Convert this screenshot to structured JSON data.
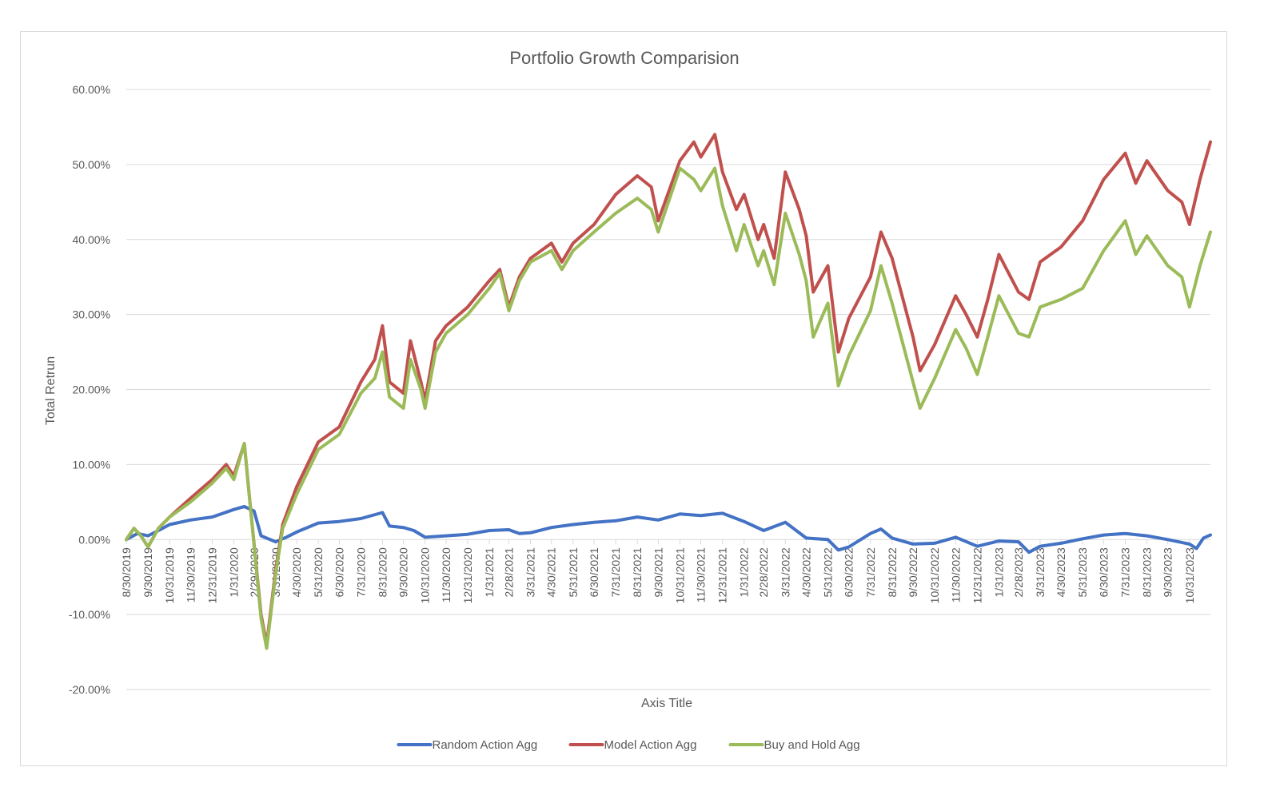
{
  "chart_data": {
    "type": "line",
    "title": "Portfolio Growth Comparision",
    "xlabel": "Axis Title",
    "ylabel": "Total Retrun",
    "ylim": [
      -20,
      60
    ],
    "y_ticks": [
      -20,
      -10,
      0,
      10,
      20,
      30,
      40,
      50,
      60
    ],
    "y_tick_labels": [
      "-20.00%",
      "-10.00%",
      "0.00%",
      "10.00%",
      "20.00%",
      "30.00%",
      "40.00%",
      "50.00%",
      "60.00%"
    ],
    "x_range": [
      "2019-08-30",
      "2023-11-30"
    ],
    "x_tick_dates": [
      "2019-08-30",
      "2019-09-30",
      "2019-10-31",
      "2019-11-30",
      "2019-12-31",
      "2020-01-31",
      "2020-02-29",
      "2020-03-31",
      "2020-04-30",
      "2020-05-31",
      "2020-06-30",
      "2020-07-31",
      "2020-08-31",
      "2020-09-30",
      "2020-10-31",
      "2020-11-30",
      "2020-12-31",
      "2021-01-31",
      "2021-02-28",
      "2021-03-31",
      "2021-04-30",
      "2021-05-31",
      "2021-06-30",
      "2021-07-31",
      "2021-08-31",
      "2021-09-30",
      "2021-10-31",
      "2021-11-30",
      "2021-12-31",
      "2022-01-31",
      "2022-02-28",
      "2022-03-31",
      "2022-04-30",
      "2022-05-31",
      "2022-06-30",
      "2022-07-31",
      "2022-08-31",
      "2022-09-30",
      "2022-10-31",
      "2022-11-30",
      "2022-12-31",
      "2023-01-31",
      "2023-02-28",
      "2023-03-31",
      "2023-04-30",
      "2023-05-31",
      "2023-06-30",
      "2023-07-31",
      "2023-08-31",
      "2023-09-30",
      "2023-10-31"
    ],
    "x_tick_labels": [
      "8/30/2019",
      "9/30/2019",
      "10/31/2019",
      "11/30/2019",
      "12/31/2019",
      "1/31/2020",
      "2/29/2020",
      "3/31/2020",
      "4/30/2020",
      "5/31/2020",
      "6/30/2020",
      "7/31/2020",
      "8/31/2020",
      "9/30/2020",
      "10/31/2020",
      "11/30/2020",
      "12/31/2020",
      "1/31/2021",
      "2/28/2021",
      "3/31/2021",
      "4/30/2021",
      "5/31/2021",
      "6/30/2021",
      "7/31/2021",
      "8/31/2021",
      "9/30/2021",
      "10/31/2021",
      "11/30/2021",
      "12/31/2021",
      "1/31/2022",
      "2/28/2022",
      "3/31/2022",
      "4/30/2022",
      "5/31/2022",
      "6/30/2022",
      "7/31/2022",
      "8/31/2022",
      "9/30/2022",
      "10/31/2022",
      "11/30/2022",
      "12/31/2022",
      "1/31/2023",
      "2/28/2023",
      "3/31/2023",
      "4/30/2023",
      "5/31/2023",
      "6/30/2023",
      "7/31/2023",
      "8/31/2023",
      "9/30/2023",
      "10/31/2023"
    ],
    "grid": true,
    "legend_position": "bottom",
    "series": [
      {
        "name": "Random Action Agg",
        "color": "#4472c4",
        "points": [
          [
            "2019-08-30",
            0
          ],
          [
            "2019-09-15",
            0.8
          ],
          [
            "2019-09-30",
            0.5
          ],
          [
            "2019-10-15",
            1.2
          ],
          [
            "2019-10-31",
            2.0
          ],
          [
            "2019-11-30",
            2.6
          ],
          [
            "2019-12-31",
            3.0
          ],
          [
            "2020-01-31",
            4.0
          ],
          [
            "2020-02-15",
            4.4
          ],
          [
            "2020-02-29",
            3.8
          ],
          [
            "2020-03-10",
            0.5
          ],
          [
            "2020-03-31",
            -0.3
          ],
          [
            "2020-04-15",
            0.3
          ],
          [
            "2020-04-30",
            1.0
          ],
          [
            "2020-05-31",
            2.2
          ],
          [
            "2020-06-30",
            2.4
          ],
          [
            "2020-07-31",
            2.8
          ],
          [
            "2020-08-31",
            3.6
          ],
          [
            "2020-09-10",
            1.8
          ],
          [
            "2020-09-30",
            1.6
          ],
          [
            "2020-10-15",
            1.2
          ],
          [
            "2020-10-31",
            0.3
          ],
          [
            "2020-11-30",
            0.5
          ],
          [
            "2020-12-31",
            0.7
          ],
          [
            "2021-01-31",
            1.2
          ],
          [
            "2021-02-28",
            1.3
          ],
          [
            "2021-03-15",
            0.8
          ],
          [
            "2021-03-31",
            0.9
          ],
          [
            "2021-04-30",
            1.6
          ],
          [
            "2021-05-31",
            2.0
          ],
          [
            "2021-06-30",
            2.3
          ],
          [
            "2021-07-31",
            2.5
          ],
          [
            "2021-08-31",
            3.0
          ],
          [
            "2021-09-30",
            2.6
          ],
          [
            "2021-10-31",
            3.4
          ],
          [
            "2021-11-30",
            3.2
          ],
          [
            "2021-12-31",
            3.5
          ],
          [
            "2022-01-31",
            2.4
          ],
          [
            "2022-02-28",
            1.2
          ],
          [
            "2022-03-31",
            2.3
          ],
          [
            "2022-04-30",
            0.2
          ],
          [
            "2022-05-31",
            0.0
          ],
          [
            "2022-06-15",
            -1.4
          ],
          [
            "2022-06-30",
            -1.0
          ],
          [
            "2022-07-31",
            0.8
          ],
          [
            "2022-08-15",
            1.4
          ],
          [
            "2022-08-31",
            0.2
          ],
          [
            "2022-09-30",
            -0.6
          ],
          [
            "2022-10-31",
            -0.5
          ],
          [
            "2022-11-30",
            0.3
          ],
          [
            "2022-12-31",
            -0.9
          ],
          [
            "2023-01-31",
            -0.2
          ],
          [
            "2023-02-28",
            -0.3
          ],
          [
            "2023-03-15",
            -1.7
          ],
          [
            "2023-03-31",
            -0.9
          ],
          [
            "2023-04-30",
            -0.5
          ],
          [
            "2023-05-31",
            0.1
          ],
          [
            "2023-06-30",
            0.6
          ],
          [
            "2023-07-31",
            0.8
          ],
          [
            "2023-08-31",
            0.5
          ],
          [
            "2023-09-30",
            0.0
          ],
          [
            "2023-10-31",
            -0.6
          ],
          [
            "2023-11-10",
            -1.2
          ],
          [
            "2023-11-20",
            0.2
          ],
          [
            "2023-11-30",
            0.6
          ]
        ]
      },
      {
        "name": "Model Action Agg",
        "color": "#c0504d",
        "points": [
          [
            "2019-08-30",
            0
          ],
          [
            "2019-09-10",
            1.5
          ],
          [
            "2019-09-20",
            0.5
          ],
          [
            "2019-09-30",
            -1.0
          ],
          [
            "2019-10-15",
            1.5
          ],
          [
            "2019-10-31",
            3.0
          ],
          [
            "2019-11-30",
            5.5
          ],
          [
            "2019-12-31",
            8.0
          ],
          [
            "2020-01-20",
            10.0
          ],
          [
            "2020-01-31",
            8.5
          ],
          [
            "2020-02-15",
            12.8
          ],
          [
            "2020-02-22",
            6.0
          ],
          [
            "2020-03-10",
            -10.0
          ],
          [
            "2020-03-18",
            -14.0
          ],
          [
            "2020-03-31",
            -4.0
          ],
          [
            "2020-04-10",
            2.0
          ],
          [
            "2020-04-30",
            7.0
          ],
          [
            "2020-05-31",
            13.0
          ],
          [
            "2020-06-30",
            15.0
          ],
          [
            "2020-07-31",
            21.0
          ],
          [
            "2020-08-20",
            24.0
          ],
          [
            "2020-08-31",
            28.5
          ],
          [
            "2020-09-10",
            21.0
          ],
          [
            "2020-09-30",
            19.5
          ],
          [
            "2020-10-10",
            26.5
          ],
          [
            "2020-10-25",
            21.0
          ],
          [
            "2020-10-31",
            18.5
          ],
          [
            "2020-11-15",
            26.5
          ],
          [
            "2020-11-30",
            28.5
          ],
          [
            "2020-12-31",
            31.0
          ],
          [
            "2021-01-31",
            34.5
          ],
          [
            "2021-02-15",
            36.0
          ],
          [
            "2021-02-28",
            31.0
          ],
          [
            "2021-03-15",
            35.0
          ],
          [
            "2021-03-31",
            37.5
          ],
          [
            "2021-04-30",
            39.5
          ],
          [
            "2021-05-15",
            37.0
          ],
          [
            "2021-05-31",
            39.5
          ],
          [
            "2021-06-30",
            42.0
          ],
          [
            "2021-07-31",
            46.0
          ],
          [
            "2021-08-31",
            48.5
          ],
          [
            "2021-09-20",
            47.0
          ],
          [
            "2021-09-30",
            42.5
          ],
          [
            "2021-10-31",
            50.5
          ],
          [
            "2021-11-20",
            53.0
          ],
          [
            "2021-11-30",
            51.0
          ],
          [
            "2021-12-20",
            54.0
          ],
          [
            "2021-12-31",
            49.0
          ],
          [
            "2022-01-20",
            44.0
          ],
          [
            "2022-01-31",
            46.0
          ],
          [
            "2022-02-20",
            40.0
          ],
          [
            "2022-02-28",
            42.0
          ],
          [
            "2022-03-15",
            37.5
          ],
          [
            "2022-03-31",
            49.0
          ],
          [
            "2022-04-20",
            44.0
          ],
          [
            "2022-04-30",
            40.5
          ],
          [
            "2022-05-10",
            33.0
          ],
          [
            "2022-05-31",
            36.5
          ],
          [
            "2022-06-15",
            25.0
          ],
          [
            "2022-06-30",
            29.5
          ],
          [
            "2022-07-31",
            35.0
          ],
          [
            "2022-08-15",
            41.0
          ],
          [
            "2022-08-31",
            37.5
          ],
          [
            "2022-09-30",
            27.0
          ],
          [
            "2022-10-10",
            22.5
          ],
          [
            "2022-10-31",
            26.0
          ],
          [
            "2022-11-30",
            32.5
          ],
          [
            "2022-12-15",
            30.0
          ],
          [
            "2022-12-31",
            27.0
          ],
          [
            "2023-01-15",
            32.0
          ],
          [
            "2023-01-31",
            38.0
          ],
          [
            "2023-02-28",
            33.0
          ],
          [
            "2023-03-15",
            32.0
          ],
          [
            "2023-03-31",
            37.0
          ],
          [
            "2023-04-30",
            39.0
          ],
          [
            "2023-05-31",
            42.5
          ],
          [
            "2023-06-30",
            48.0
          ],
          [
            "2023-07-31",
            51.5
          ],
          [
            "2023-08-15",
            47.5
          ],
          [
            "2023-08-31",
            50.5
          ],
          [
            "2023-09-30",
            46.5
          ],
          [
            "2023-10-20",
            45.0
          ],
          [
            "2023-10-31",
            42.0
          ],
          [
            "2023-11-15",
            48.0
          ],
          [
            "2023-11-30",
            53.0
          ]
        ]
      },
      {
        "name": "Buy and Hold Agg",
        "color": "#9bbb59",
        "points": [
          [
            "2019-08-30",
            0
          ],
          [
            "2019-09-10",
            1.5
          ],
          [
            "2019-09-20",
            0.5
          ],
          [
            "2019-09-30",
            -1.0
          ],
          [
            "2019-10-15",
            1.5
          ],
          [
            "2019-10-31",
            3.0
          ],
          [
            "2019-11-30",
            5.0
          ],
          [
            "2019-12-31",
            7.5
          ],
          [
            "2020-01-20",
            9.5
          ],
          [
            "2020-01-31",
            8.0
          ],
          [
            "2020-02-15",
            12.8
          ],
          [
            "2020-02-22",
            6.0
          ],
          [
            "2020-03-10",
            -10.5
          ],
          [
            "2020-03-18",
            -14.5
          ],
          [
            "2020-03-31",
            -4.5
          ],
          [
            "2020-04-10",
            1.5
          ],
          [
            "2020-04-30",
            6.0
          ],
          [
            "2020-05-31",
            12.0
          ],
          [
            "2020-06-30",
            14.0
          ],
          [
            "2020-07-31",
            19.5
          ],
          [
            "2020-08-20",
            21.5
          ],
          [
            "2020-08-31",
            25.0
          ],
          [
            "2020-09-10",
            19.0
          ],
          [
            "2020-09-30",
            17.5
          ],
          [
            "2020-10-10",
            24.0
          ],
          [
            "2020-10-25",
            20.0
          ],
          [
            "2020-10-31",
            17.5
          ],
          [
            "2020-11-15",
            25.0
          ],
          [
            "2020-11-30",
            27.5
          ],
          [
            "2020-12-31",
            30.0
          ],
          [
            "2021-01-31",
            33.5
          ],
          [
            "2021-02-15",
            35.5
          ],
          [
            "2021-02-28",
            30.5
          ],
          [
            "2021-03-15",
            34.5
          ],
          [
            "2021-03-31",
            37.0
          ],
          [
            "2021-04-30",
            38.5
          ],
          [
            "2021-05-15",
            36.0
          ],
          [
            "2021-05-31",
            38.5
          ],
          [
            "2021-06-30",
            41.0
          ],
          [
            "2021-07-31",
            43.5
          ],
          [
            "2021-08-31",
            45.5
          ],
          [
            "2021-09-20",
            44.0
          ],
          [
            "2021-09-30",
            41.0
          ],
          [
            "2021-10-31",
            49.5
          ],
          [
            "2021-11-20",
            48.0
          ],
          [
            "2021-11-30",
            46.5
          ],
          [
            "2021-12-20",
            49.5
          ],
          [
            "2021-12-31",
            44.5
          ],
          [
            "2022-01-20",
            38.5
          ],
          [
            "2022-01-31",
            42.0
          ],
          [
            "2022-02-20",
            36.5
          ],
          [
            "2022-02-28",
            38.5
          ],
          [
            "2022-03-15",
            34.0
          ],
          [
            "2022-03-31",
            43.5
          ],
          [
            "2022-04-20",
            38.0
          ],
          [
            "2022-04-30",
            34.5
          ],
          [
            "2022-05-10",
            27.0
          ],
          [
            "2022-05-31",
            31.5
          ],
          [
            "2022-06-15",
            20.5
          ],
          [
            "2022-06-30",
            24.5
          ],
          [
            "2022-07-31",
            30.5
          ],
          [
            "2022-08-15",
            36.5
          ],
          [
            "2022-08-31",
            31.5
          ],
          [
            "2022-09-30",
            21.0
          ],
          [
            "2022-10-10",
            17.5
          ],
          [
            "2022-10-31",
            21.5
          ],
          [
            "2022-11-30",
            28.0
          ],
          [
            "2022-12-15",
            25.5
          ],
          [
            "2022-12-31",
            22.0
          ],
          [
            "2023-01-15",
            27.0
          ],
          [
            "2023-01-31",
            32.5
          ],
          [
            "2023-02-28",
            27.5
          ],
          [
            "2023-03-15",
            27.0
          ],
          [
            "2023-03-31",
            31.0
          ],
          [
            "2023-04-30",
            32.0
          ],
          [
            "2023-05-31",
            33.5
          ],
          [
            "2023-06-30",
            38.5
          ],
          [
            "2023-07-31",
            42.5
          ],
          [
            "2023-08-15",
            38.0
          ],
          [
            "2023-08-31",
            40.5
          ],
          [
            "2023-09-30",
            36.5
          ],
          [
            "2023-10-20",
            35.0
          ],
          [
            "2023-10-31",
            31.0
          ],
          [
            "2023-11-15",
            36.5
          ],
          [
            "2023-11-30",
            41.0
          ]
        ]
      }
    ]
  }
}
